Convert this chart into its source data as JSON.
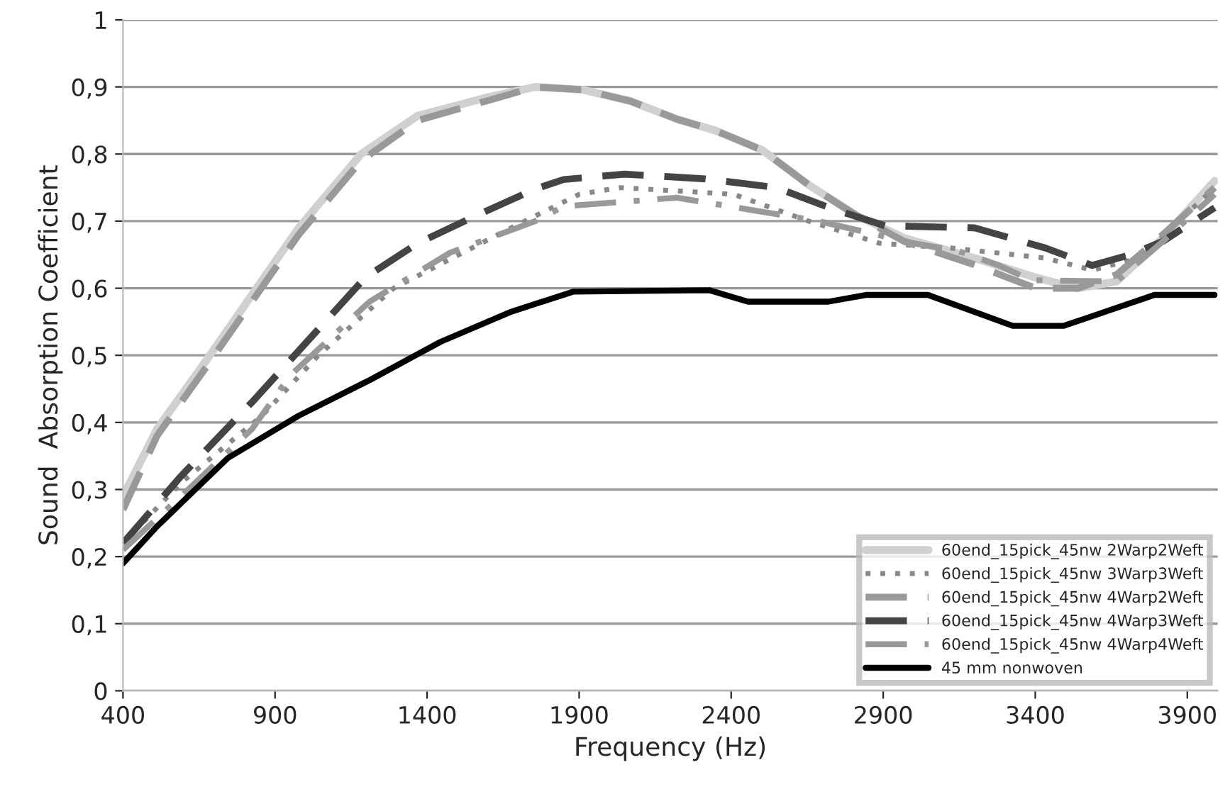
{
  "chart_data": {
    "type": "line",
    "xlabel": "Frequency (Hz)",
    "ylabel": "Sound  Absorption Coefficient",
    "xlim": [
      400,
      4000
    ],
    "xticks": [
      400,
      900,
      1400,
      1900,
      2400,
      2900,
      3400,
      3900
    ],
    "ylim": [
      0,
      1
    ],
    "yticks": [
      0,
      {
        "value": 0.1,
        "label": "0,1"
      },
      {
        "value": 0.2,
        "label": "0,2"
      },
      {
        "value": 0.3,
        "label": "0,3"
      },
      {
        "value": 0.4,
        "label": "0,4"
      },
      {
        "value": 0.5,
        "label": "0,5"
      },
      {
        "value": 0.6,
        "label": "0,6"
      },
      {
        "value": 0.7,
        "label": "0,7"
      },
      {
        "value": 0.8,
        "label": "0,8"
      },
      {
        "value": 0.9,
        "label": "0,9"
      },
      1
    ],
    "grid": "y",
    "legend": "bottom right",
    "series": [
      {
        "name": "60end_15pick_45nw 2Warp2Weft",
        "color": "#d0d0d0",
        "line_style": "solid",
        "x": [
          400,
          512,
          670,
          824,
          978,
          1183,
          1369,
          1602,
          1756,
          1910,
          2068,
          2222,
          2348,
          2502,
          2655,
          2814,
          2968,
          3200,
          3401,
          3540,
          3667,
          3820,
          3990
        ],
        "values": [
          0.29,
          0.39,
          0.49,
          0.59,
          0.69,
          0.8,
          0.857,
          0.885,
          0.9,
          0.896,
          0.879,
          0.852,
          0.835,
          0.806,
          0.754,
          0.708,
          0.675,
          0.645,
          0.616,
          0.6,
          0.61,
          0.675,
          0.76
        ]
      },
      {
        "name": "60end_15pick_45nw 3Warp3Weft",
        "color": "#888888",
        "line_style": "dotted",
        "x": [
          400,
          591,
          857,
          1043,
          1290,
          1677,
          1900,
          2036,
          2408,
          2655,
          2888,
          3121,
          3433,
          3587,
          3742,
          3990
        ],
        "values": [
          0.22,
          0.31,
          0.41,
          0.5,
          0.6,
          0.69,
          0.74,
          0.75,
          0.74,
          0.7,
          0.667,
          0.66,
          0.645,
          0.627,
          0.645,
          0.75
        ]
      },
      {
        "name": "60end_15pick_45nw 4Warp2Weft",
        "color": "#999999",
        "line_style": "dashed",
        "x": [
          400,
          512,
          670,
          824,
          978,
          1183,
          1369,
          1602,
          1756,
          1910,
          2068,
          2222,
          2348,
          2502,
          2655,
          2814,
          2968,
          3200,
          3401,
          3540,
          3667,
          3820,
          3990
        ],
        "values": [
          0.27,
          0.38,
          0.48,
          0.58,
          0.68,
          0.79,
          0.85,
          0.88,
          0.9,
          0.896,
          0.879,
          0.852,
          0.835,
          0.806,
          0.754,
          0.708,
          0.67,
          0.635,
          0.6,
          0.6,
          0.62,
          0.68,
          0.75
        ]
      },
      {
        "name": "60end_15pick_45nw 4Warp3Weft",
        "color": "#444444",
        "line_style": "dashed",
        "x": [
          400,
          591,
          824,
          1197,
          1369,
          1570,
          1756,
          1849,
          2049,
          2315,
          2548,
          2735,
          2907,
          3200,
          3433,
          3587,
          3713,
          3820,
          3990
        ],
        "values": [
          0.22,
          0.32,
          0.43,
          0.616,
          0.667,
          0.71,
          0.748,
          0.762,
          0.77,
          0.763,
          0.75,
          0.718,
          0.693,
          0.69,
          0.66,
          0.634,
          0.65,
          0.67,
          0.72
        ]
      },
      {
        "name": "60end_15pick_45nw 4Warp4Weft",
        "color": "#999999",
        "line_style": "dashdot",
        "x": [
          400,
          591,
          824,
          950,
          1211,
          1476,
          1756,
          1849,
          2222,
          2688,
          3000,
          3150,
          3280,
          3387,
          3667,
          3820,
          3990
        ],
        "values": [
          0.21,
          0.29,
          0.39,
          0.47,
          0.58,
          0.653,
          0.7,
          0.722,
          0.735,
          0.7,
          0.667,
          0.655,
          0.634,
          0.612,
          0.61,
          0.67,
          0.74
        ]
      },
      {
        "name": "45 mm nonwoven",
        "color": "#000000",
        "line_style": "solid",
        "x": [
          400,
          512,
          745,
          978,
          1211,
          1444,
          1677,
          1882,
          2329,
          2455,
          2720,
          2843,
          3047,
          3326,
          3494,
          3792,
          3990
        ],
        "values": [
          0.19,
          0.245,
          0.347,
          0.41,
          0.463,
          0.52,
          0.565,
          0.595,
          0.597,
          0.58,
          0.58,
          0.59,
          0.59,
          0.544,
          0.544,
          0.59,
          0.59
        ]
      }
    ]
  }
}
